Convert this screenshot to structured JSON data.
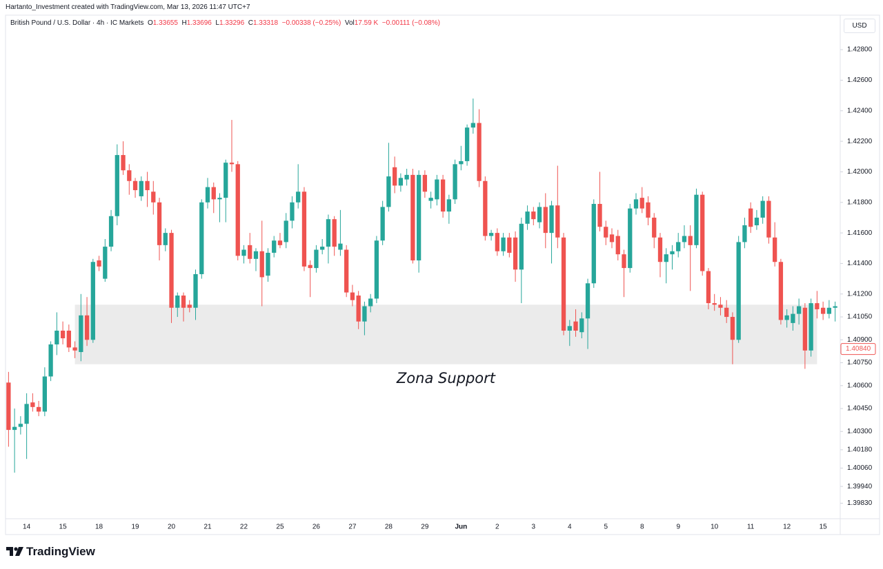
{
  "header": {
    "credit": "Hartanto_Investment created with TradingView.com, Mar 13, 2026 11:47 UTC+7",
    "brand": "TradingView"
  },
  "chart_data": {
    "type": "candlestick",
    "symbol": "British Pound / U.S. Dollar · 4h · IC Markets",
    "legend": [
      {
        "label": "O",
        "value": "1.33655"
      },
      {
        "label": "H",
        "value": "1.33696"
      },
      {
        "label": "L",
        "value": "1.33296"
      },
      {
        "label": "C",
        "value": "1.33318"
      }
    ],
    "change": "−0.00338 (−0.25%)",
    "volume": {
      "label": "Vol",
      "value": "17.59 K",
      "change": "−0.00111 (−0.08%)"
    },
    "currency": "USD",
    "up_color": "#26a69a",
    "down_color": "#ef5350",
    "grid": false,
    "ylim": [
      1.39733,
      1.43026
    ],
    "yticks": [
      {
        "value": 1.428,
        "label": "1.42800"
      },
      {
        "value": 1.426,
        "label": "1.42600"
      },
      {
        "value": 1.424,
        "label": "1.42400"
      },
      {
        "value": 1.422,
        "label": "1.42200"
      },
      {
        "value": 1.42,
        "label": "1.42000"
      },
      {
        "value": 1.418,
        "label": "1.41800"
      },
      {
        "value": 1.416,
        "label": "1.41600"
      },
      {
        "value": 1.414,
        "label": "1.41400"
      },
      {
        "value": 1.412,
        "label": "1.41200"
      },
      {
        "value": 1.4105,
        "label": "1.41050"
      },
      {
        "value": 1.409,
        "label": "1.40900"
      },
      {
        "value": 1.4075,
        "label": "1.40750"
      },
      {
        "value": 1.406,
        "label": "1.40600"
      },
      {
        "value": 1.4045,
        "label": "1.40450"
      },
      {
        "value": 1.403,
        "label": "1.40300"
      },
      {
        "value": 1.4018,
        "label": "1.40180"
      },
      {
        "value": 1.4006,
        "label": "1.40060"
      },
      {
        "value": 1.3994,
        "label": "1.39940"
      },
      {
        "value": 1.3983,
        "label": "1.39830"
      }
    ],
    "last_price": {
      "value": 1.4084,
      "label": "1.40840"
    },
    "zone": {
      "label": "Zona Support",
      "top": 1.4113,
      "bottom": 1.4074,
      "start": 11,
      "end": 134
    },
    "categories": [
      null,
      null,
      null,
      "14",
      null,
      null,
      null,
      null,
      null,
      "15",
      null,
      null,
      null,
      null,
      null,
      "18",
      null,
      null,
      null,
      null,
      null,
      "19",
      null,
      null,
      null,
      null,
      null,
      "20",
      null,
      null,
      null,
      null,
      null,
      "21",
      null,
      null,
      null,
      null,
      null,
      "22",
      null,
      null,
      null,
      null,
      null,
      "25",
      null,
      null,
      null,
      null,
      null,
      "26",
      null,
      null,
      null,
      null,
      null,
      "27",
      null,
      null,
      null,
      null,
      null,
      "28",
      null,
      null,
      null,
      null,
      null,
      "29",
      null,
      null,
      null,
      null,
      null,
      "Jun",
      null,
      null,
      null,
      null,
      null,
      "2",
      null,
      null,
      null,
      null,
      null,
      "3",
      null,
      null,
      null,
      null,
      null,
      "4",
      null,
      null,
      null,
      null,
      null,
      "5",
      null,
      null,
      null,
      null,
      null,
      "8",
      null,
      null,
      null,
      null,
      null,
      "9",
      null,
      null,
      null,
      null,
      null,
      "10",
      null,
      null,
      null,
      null,
      null,
      "11",
      null,
      null,
      null,
      null,
      null,
      "12",
      null,
      null,
      null,
      null,
      null,
      "15",
      null,
      null
    ],
    "open": [
      1.4062,
      1.4031,
      1.4033,
      1.4035,
      1.4049,
      1.4046,
      1.4043,
      1.4066,
      1.4087,
      1.4096,
      1.4096,
      1.4085,
      1.4082,
      1.4106,
      1.409,
      1.4142,
      1.413,
      1.4151,
      1.4171,
      1.4211,
      1.4201,
      1.4194,
      1.4184,
      1.4194,
      1.4187,
      1.418,
      1.4152,
      1.416,
      1.4111,
      1.4119,
      1.4113,
      1.4111,
      1.4133,
      1.418,
      1.419,
      1.4182,
      1.4183,
      1.4206,
      1.4205,
      1.4145,
      1.4152,
      1.4143,
      1.4148,
      1.4132,
      1.4147,
      1.4155,
      1.4154,
      1.4168,
      1.418,
      1.4187,
      1.4139,
      1.4137,
      1.4149,
      1.4151,
      1.4169,
      1.4149,
      1.4149,
      1.4121,
      1.4119,
      1.4102,
      1.4112,
      1.4117,
      1.4155,
      1.4177,
      1.4203,
      1.4191,
      1.4195,
      1.4198,
      1.4142,
      1.4198,
      1.4181,
      1.4182,
      1.4195,
      1.4174,
      1.4182,
      1.4205,
      1.4207,
      1.4229,
      1.4232,
      1.4194,
      1.4158,
      1.416,
      1.4148,
      1.4157,
      1.4157,
      1.4136,
      1.4166,
      1.4174,
      1.4167,
      1.4177,
      1.416,
      1.4178,
      1.4157,
      1.4096,
      1.4102,
      1.4095,
      1.4104,
      1.4127,
      1.4179,
      1.4164,
      1.4159,
      1.4158,
      1.4146,
      1.4137,
      1.4176,
      1.4183,
      1.418,
      1.417,
      1.4157,
      1.4141,
      1.4146,
      1.4148,
      1.4154,
      1.4158,
      1.4152,
      1.4185,
      1.4135,
      1.4114,
      1.4113,
      1.4111,
      1.4105,
      1.409,
      1.4154,
      1.4176,
      1.4165,
      1.417,
      1.4181,
      1.4157,
      1.4141,
      1.4103,
      1.4101,
      1.4107,
      1.4111,
      1.4083,
      1.4114,
      1.4111,
      1.4107,
      1.4111
    ],
    "high": [
      1.4069,
      1.4045,
      1.404,
      1.4055,
      1.4055,
      1.405,
      1.4072,
      1.4089,
      1.4108,
      1.4102,
      1.41,
      1.4089,
      1.412,
      1.4118,
      1.4143,
      1.4145,
      1.4156,
      1.4175,
      1.4218,
      1.422,
      1.4205,
      1.4196,
      1.4197,
      1.42,
      1.4194,
      1.4183,
      1.4163,
      1.4162,
      1.4121,
      1.4121,
      1.4116,
      1.4136,
      1.4182,
      1.4196,
      1.4193,
      1.4186,
      1.4208,
      1.4234,
      1.4207,
      1.4152,
      1.416,
      1.415,
      1.4168,
      1.415,
      1.4158,
      1.416,
      1.4173,
      1.4184,
      1.4205,
      1.419,
      1.4142,
      1.4152,
      1.4156,
      1.4172,
      1.4171,
      1.4175,
      1.4152,
      1.4126,
      1.4122,
      1.4115,
      1.412,
      1.4158,
      1.4181,
      1.4219,
      1.421,
      1.4199,
      1.4202,
      1.4202,
      1.4201,
      1.4201,
      1.4187,
      1.4198,
      1.4198,
      1.4185,
      1.4208,
      1.4217,
      1.4231,
      1.4248,
      1.4241,
      1.4197,
      1.4162,
      1.4163,
      1.416,
      1.416,
      1.4161,
      1.417,
      1.4178,
      1.4177,
      1.418,
      1.4186,
      1.4181,
      1.4204,
      1.416,
      1.4103,
      1.411,
      1.4108,
      1.413,
      1.4182,
      1.42,
      1.4168,
      1.4163,
      1.4162,
      1.4149,
      1.4179,
      1.4186,
      1.419,
      1.4184,
      1.4173,
      1.416,
      1.415,
      1.4152,
      1.416,
      1.4165,
      1.4165,
      1.4189,
      1.4187,
      1.4137,
      1.412,
      1.4118,
      1.4116,
      1.4108,
      1.4158,
      1.417,
      1.418,
      1.4175,
      1.4184,
      1.4184,
      1.4167,
      1.4143,
      1.411,
      1.4112,
      1.4117,
      1.4114,
      1.4117,
      1.4122,
      1.4115,
      1.4116,
      1.4115
    ],
    "low": [
      1.402,
      1.4003,
      1.4028,
      1.4012,
      1.4043,
      1.404,
      1.404,
      1.4063,
      1.408,
      1.4087,
      1.4082,
      1.4078,
      1.4076,
      1.4086,
      1.4088,
      1.4135,
      1.4128,
      1.4148,
      1.4165,
      1.4198,
      1.4185,
      1.4183,
      1.4181,
      1.4177,
      1.4172,
      1.4142,
      1.4148,
      1.4101,
      1.4105,
      1.4102,
      1.4108,
      1.4103,
      1.413,
      1.4176,
      1.4173,
      1.4167,
      1.4167,
      1.42,
      1.4142,
      1.414,
      1.414,
      1.4135,
      1.4112,
      1.4128,
      1.4144,
      1.415,
      1.415,
      1.4163,
      1.4176,
      1.4135,
      1.4118,
      1.4134,
      1.4146,
      1.414,
      1.4145,
      1.4145,
      1.4118,
      1.4112,
      1.4097,
      1.4093,
      1.4108,
      1.4114,
      1.4152,
      1.4174,
      1.4186,
      1.4187,
      1.4191,
      1.414,
      1.4134,
      1.4183,
      1.4176,
      1.4178,
      1.417,
      1.4166,
      1.4179,
      1.4201,
      1.4204,
      1.4225,
      1.419,
      1.4155,
      1.4155,
      1.4145,
      1.4145,
      1.4144,
      1.4128,
      1.4114,
      1.4162,
      1.4165,
      1.4163,
      1.415,
      1.414,
      1.415,
      1.4093,
      1.4086,
      1.4092,
      1.4091,
      1.4084,
      1.4124,
      1.4161,
      1.4152,
      1.415,
      1.4142,
      1.4118,
      1.4134,
      1.4172,
      1.4173,
      1.4165,
      1.415,
      1.4131,
      1.4127,
      1.4136,
      1.4144,
      1.415,
      1.4122,
      1.415,
      1.4132,
      1.411,
      1.4109,
      1.4106,
      1.4101,
      1.4074,
      1.4088,
      1.415,
      1.416,
      1.4162,
      1.4166,
      1.4153,
      1.4138,
      1.41,
      1.4098,
      1.4096,
      1.41,
      1.4071,
      1.4079,
      1.4104,
      1.4103,
      1.4104,
      1.4102
    ],
    "close": [
      1.4031,
      1.4033,
      1.4035,
      1.4048,
      1.4046,
      1.4043,
      1.4066,
      1.4087,
      1.4096,
      1.4091,
      1.4085,
      1.4083,
      1.4106,
      1.409,
      1.4141,
      1.4138,
      1.4151,
      1.4171,
      1.4211,
      1.4201,
      1.4194,
      1.4188,
      1.4194,
      1.4188,
      1.418,
      1.4152,
      1.416,
      1.4111,
      1.4119,
      1.4111,
      1.4111,
      1.4133,
      1.418,
      1.419,
      1.4182,
      1.4183,
      1.4206,
      1.4205,
      1.4145,
      1.4149,
      1.4143,
      1.4148,
      1.4131,
      1.4147,
      1.4155,
      1.4152,
      1.4168,
      1.418,
      1.4187,
      1.4138,
      1.4137,
      1.4149,
      1.4151,
      1.4169,
      1.4151,
      1.4153,
      1.4121,
      1.4116,
      1.4102,
      1.4112,
      1.4117,
      1.4155,
      1.4177,
      1.4197,
      1.4191,
      1.4196,
      1.4198,
      1.4142,
      1.4198,
      1.4187,
      1.4183,
      1.4195,
      1.4174,
      1.4182,
      1.4205,
      1.4207,
      1.4229,
      1.4232,
      1.4194,
      1.4158,
      1.416,
      1.4148,
      1.4157,
      1.4147,
      1.4136,
      1.4166,
      1.4174,
      1.4169,
      1.4177,
      1.416,
      1.4178,
      1.4157,
      1.4096,
      1.4099,
      1.4096,
      1.4104,
      1.4127,
      1.4179,
      1.4164,
      1.4157,
      1.4154,
      1.4146,
      1.4137,
      1.4176,
      1.4182,
      1.4176,
      1.417,
      1.4157,
      1.4141,
      1.4146,
      1.4148,
      1.4154,
      1.4158,
      1.4152,
      1.4185,
      1.4135,
      1.4114,
      1.4113,
      1.4111,
      1.4105,
      1.409,
      1.4154,
      1.4165,
      1.4164,
      1.417,
      1.4181,
      1.4157,
      1.4141,
      1.4103,
      1.4106,
      1.4107,
      1.4112,
      1.4083,
      1.4114,
      1.411,
      1.4107,
      1.4111,
      1.4112
    ]
  }
}
